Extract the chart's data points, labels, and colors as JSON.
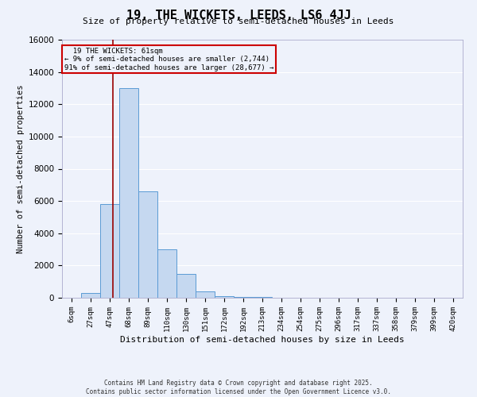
{
  "title": "19, THE WICKETS, LEEDS, LS6 4JJ",
  "subtitle": "Size of property relative to semi-detached houses in Leeds",
  "xlabel": "Distribution of semi-detached houses by size in Leeds",
  "ylabel": "Number of semi-detached properties",
  "bar_color": "#c5d8f0",
  "bar_edge_color": "#5b9bd5",
  "background_color": "#eef2fb",
  "grid_color": "#ffffff",
  "categories": [
    "6sqm",
    "27sqm",
    "47sqm",
    "68sqm",
    "89sqm",
    "110sqm",
    "130sqm",
    "151sqm",
    "172sqm",
    "192sqm",
    "213sqm",
    "234sqm",
    "254sqm",
    "275sqm",
    "296sqm",
    "317sqm",
    "337sqm",
    "358sqm",
    "379sqm",
    "399sqm",
    "420sqm"
  ],
  "values": [
    0,
    300,
    5800,
    13000,
    6600,
    3000,
    1500,
    400,
    100,
    50,
    30,
    10,
    5,
    2,
    1,
    1,
    0,
    0,
    0,
    0,
    0
  ],
  "property_label": "19 THE WICKETS: 61sqm",
  "pct_smaller": 9,
  "pct_larger": 91,
  "n_smaller": 2744,
  "n_larger": 28677,
  "vline_color": "#990000",
  "annotation_box_color": "#cc0000",
  "ylim": [
    0,
    16000
  ],
  "yticks": [
    0,
    2000,
    4000,
    6000,
    8000,
    10000,
    12000,
    14000,
    16000
  ],
  "footer_line1": "Contains HM Land Registry data © Crown copyright and database right 2025.",
  "footer_line2": "Contains public sector information licensed under the Open Government Licence v3.0.",
  "vline_x_index": 2.667
}
